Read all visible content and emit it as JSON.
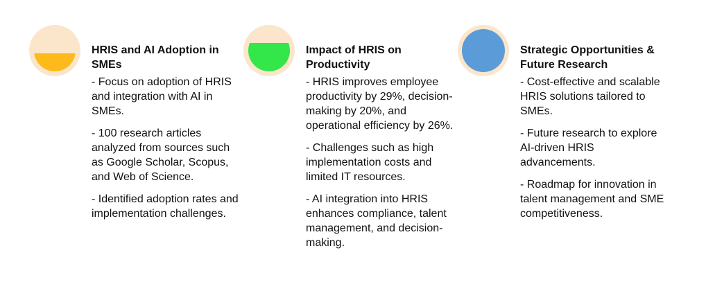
{
  "columns": [
    {
      "title": "HRIS and AI Adoption in SMEs",
      "icon": "half-filled-circle-icon",
      "icon_color": "#FDBA1A",
      "icon_bg": "#FBE6CB",
      "fill_level": 0.45,
      "points": [
        "- Focus on adoption of HRIS and integration with AI in SMEs.",
        "- 100 research articles analyzed from sources such as Google Scholar, Scopus, and Web of Science.",
        "- Identified adoption rates and implementation challenges."
      ]
    },
    {
      "title": "Impact of HRIS on Productivity",
      "icon": "mostly-filled-circle-icon",
      "icon_color": "#33E64A",
      "icon_bg": "#FBE6CB",
      "fill_level": 0.7,
      "points": [
        "- HRIS improves employee productivity by 29%, decision-making by 20%, and operational efficiency by 26%.",
        "- Challenges such as high implementation costs and limited IT resources.",
        "- AI integration into HRIS enhances compliance, talent management, and decision-making."
      ]
    },
    {
      "title": "Strategic Opportunities & Future Research",
      "icon": "full-circle-icon",
      "icon_color": "#5B9BD8",
      "icon_bg": "#FBE6CB",
      "fill_level": 1.0,
      "points": [
        "- Cost-effective and scalable HRIS solutions tailored to SMEs.",
        "- Future research to explore AI-driven HRIS advancements.",
        "- Roadmap for innovation in talent management and SME competitiveness."
      ]
    }
  ]
}
